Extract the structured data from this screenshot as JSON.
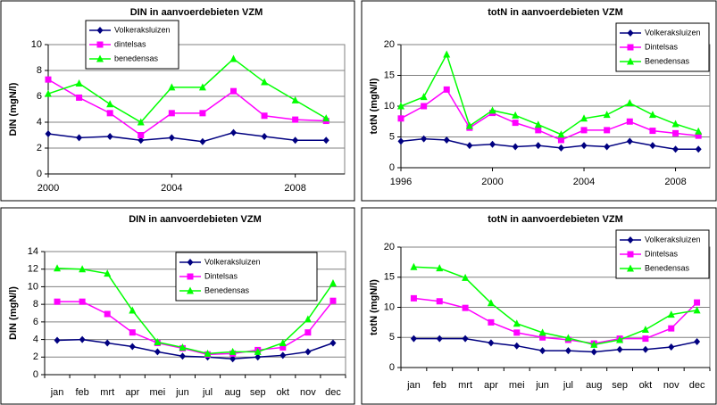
{
  "chart_data": [
    {
      "type": "line",
      "title": "DIN  in aanvoerdebieten VZM",
      "ylabel": "DIN (mgN/l)",
      "x": [
        2000,
        2001,
        2002,
        2003,
        2004,
        2005,
        2006,
        2007,
        2008,
        2009
      ],
      "xlim": [
        2000,
        2009.6
      ],
      "xticks": [
        2000,
        2004,
        2008
      ],
      "ylim": [
        0,
        10
      ],
      "yticks": [
        0,
        2,
        4,
        6,
        8,
        10
      ],
      "grid": true,
      "legend": "top-left",
      "series": [
        {
          "name": "Volkeraksluizen",
          "color": "#000080",
          "marker": "diamond",
          "values": [
            3.1,
            2.8,
            2.9,
            2.6,
            2.8,
            2.5,
            3.2,
            2.9,
            2.6,
            2.6
          ]
        },
        {
          "name": "dintelsas",
          "color": "#ff00ff",
          "marker": "square",
          "values": [
            7.3,
            5.9,
            4.7,
            3.0,
            4.7,
            4.7,
            6.4,
            4.5,
            4.2,
            4.1
          ]
        },
        {
          "name": "benedensas",
          "color": "#00ff00",
          "marker": "triangle",
          "values": [
            6.2,
            7.0,
            5.4,
            4.0,
            6.7,
            6.7,
            8.9,
            7.1,
            5.7,
            4.3
          ]
        }
      ]
    },
    {
      "type": "line",
      "title": "totN in aanvoerdebieten VZM",
      "ylabel": "totN (mgN/l)",
      "x": [
        1996,
        1997,
        1998,
        1999,
        2000,
        2001,
        2002,
        2003,
        2004,
        2005,
        2006,
        2007,
        2008,
        2009
      ],
      "xlim": [
        1996,
        2009.5
      ],
      "xticks": [
        1996,
        2000,
        2004,
        2008
      ],
      "ylim": [
        0,
        20
      ],
      "yticks": [
        0,
        5,
        10,
        15,
        20
      ],
      "grid": true,
      "legend": "top-right",
      "series": [
        {
          "name": "Volkeraksluizen",
          "color": "#000080",
          "marker": "diamond",
          "values": [
            4.3,
            4.7,
            4.5,
            3.6,
            3.8,
            3.4,
            3.6,
            3.2,
            3.6,
            3.4,
            4.3,
            3.6,
            3.0,
            3.0
          ]
        },
        {
          "name": "Dintelsas",
          "color": "#ff00ff",
          "marker": "square",
          "values": [
            8.0,
            10.0,
            12.7,
            6.5,
            8.9,
            7.3,
            6.1,
            4.5,
            6.1,
            6.1,
            7.5,
            6.0,
            5.6,
            5.2
          ]
        },
        {
          "name": "Benedensas",
          "color": "#00ff00",
          "marker": "triangle",
          "values": [
            10.0,
            11.5,
            18.4,
            6.8,
            9.3,
            8.5,
            7.0,
            5.4,
            8.0,
            8.6,
            10.5,
            8.6,
            7.1,
            5.9
          ]
        }
      ]
    },
    {
      "type": "line",
      "title": "DIN in aanvoerdebieten VZM",
      "ylabel": "DIN (mgN/l)",
      "categories": [
        "jan",
        "feb",
        "mrt",
        "apr",
        "mei",
        "jun",
        "jul",
        "aug",
        "sep",
        "okt",
        "nov",
        "dec"
      ],
      "ylim": [
        0,
        14
      ],
      "yticks": [
        0,
        2,
        4,
        6,
        8,
        10,
        12,
        14
      ],
      "grid": true,
      "legend": "top",
      "series": [
        {
          "name": "Volkeraksluizen",
          "color": "#000080",
          "marker": "diamond",
          "values": [
            3.9,
            4.0,
            3.6,
            3.2,
            2.6,
            2.1,
            2.0,
            1.8,
            2.0,
            2.2,
            2.6,
            3.6
          ]
        },
        {
          "name": "Dintelsas",
          "color": "#ff00ff",
          "marker": "square",
          "values": [
            8.3,
            8.3,
            6.9,
            4.8,
            3.6,
            3.0,
            2.3,
            2.4,
            2.8,
            3.1,
            4.8,
            8.4
          ]
        },
        {
          "name": "Benedensas",
          "color": "#00ff00",
          "marker": "triangle",
          "values": [
            12.1,
            12.0,
            11.5,
            7.3,
            3.7,
            3.1,
            2.4,
            2.6,
            2.6,
            3.6,
            6.3,
            10.4
          ]
        }
      ]
    },
    {
      "type": "line",
      "title": "totN in aanvoerdebieten VZM",
      "ylabel": "totN (mgN/l)",
      "categories": [
        "jan",
        "feb",
        "mrt",
        "apr",
        "mei",
        "jun",
        "jul",
        "aug",
        "sep",
        "okt",
        "nov",
        "dec"
      ],
      "ylim": [
        0,
        20
      ],
      "yticks": [
        0,
        5,
        10,
        15,
        20
      ],
      "grid": true,
      "legend": "top-right",
      "series": [
        {
          "name": "Volkeraksluizen",
          "color": "#000080",
          "marker": "diamond",
          "values": [
            4.8,
            4.8,
            4.8,
            4.1,
            3.6,
            2.8,
            2.8,
            2.6,
            3.0,
            3.0,
            3.4,
            4.3
          ]
        },
        {
          "name": "Dintelsas",
          "color": "#ff00ff",
          "marker": "square",
          "values": [
            11.5,
            11.0,
            9.9,
            7.5,
            5.8,
            5.0,
            4.6,
            4.0,
            4.8,
            4.8,
            6.5,
            10.8
          ]
        },
        {
          "name": "Benedensas",
          "color": "#00ff00",
          "marker": "triangle",
          "values": [
            16.7,
            16.5,
            14.9,
            10.7,
            7.3,
            5.8,
            4.9,
            3.8,
            4.6,
            6.3,
            8.8,
            9.5
          ]
        }
      ]
    }
  ]
}
